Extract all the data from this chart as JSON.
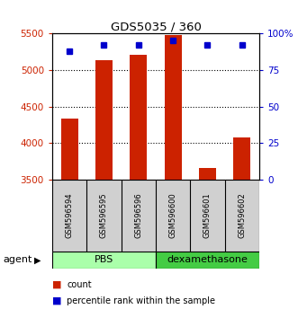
{
  "title": "GDS5035 / 360",
  "samples": [
    "GSM596594",
    "GSM596595",
    "GSM596596",
    "GSM596600",
    "GSM596601",
    "GSM596602"
  ],
  "counts": [
    4340,
    5130,
    5210,
    5480,
    3660,
    4080
  ],
  "percentiles": [
    88,
    92,
    92,
    95,
    92,
    92
  ],
  "ymin": 3500,
  "ymax": 5500,
  "yticks": [
    3500,
    4000,
    4500,
    5000,
    5500
  ],
  "pct_yticks": [
    0,
    25,
    50,
    75,
    100
  ],
  "pct_yticklabels": [
    "0",
    "25",
    "50",
    "75",
    "100%"
  ],
  "groups": [
    {
      "label": "PBS",
      "n": 3,
      "color": "#aaffaa"
    },
    {
      "label": "dexamethasone",
      "n": 3,
      "color": "#44cc44"
    }
  ],
  "bar_color": "#cc2200",
  "dot_color": "#0000cc",
  "bar_width": 0.5,
  "count_label_color": "#cc2200",
  "pct_label_color": "#0000cc",
  "sample_bg_color": "#d0d0d0",
  "background_color": "#ffffff"
}
